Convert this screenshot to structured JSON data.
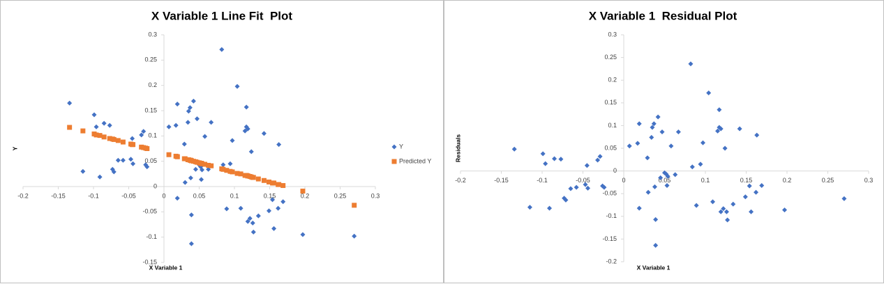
{
  "chart_data": [
    {
      "type": "scatter",
      "title": "X Variable 1 Line Fit  Plot",
      "x_label": "X Variable 1",
      "y_label": "Y",
      "legend": "right",
      "x": [
        -0.134,
        -0.115,
        -0.099,
        -0.096,
        -0.091,
        -0.085,
        -0.077,
        -0.073,
        -0.071,
        -0.065,
        -0.058,
        -0.047,
        -0.045,
        -0.044,
        -0.032,
        -0.029,
        -0.026,
        -0.024,
        0.007,
        0.017,
        0.019,
        0.019,
        0.029,
        0.03,
        0.034,
        0.035,
        0.037,
        0.038,
        0.039,
        0.039,
        0.042,
        0.045,
        0.047,
        0.05,
        0.052,
        0.053,
        0.054,
        0.058,
        0.063,
        0.067,
        0.082,
        0.084,
        0.089,
        0.094,
        0.097,
        0.104,
        0.109,
        0.115,
        0.117,
        0.117,
        0.119,
        0.119,
        0.122,
        0.124,
        0.126,
        0.127,
        0.134,
        0.142,
        0.149,
        0.154,
        0.156,
        0.162,
        0.163,
        0.169,
        0.197,
        0.27
      ],
      "series": [
        {
          "name": "Y",
          "color": "#4472c4",
          "marker": "diamond",
          "values": [
            0.165,
            0.03,
            0.142,
            0.118,
            0.019,
            0.125,
            0.121,
            0.034,
            0.029,
            0.052,
            0.052,
            0.054,
            0.095,
            0.045,
            0.102,
            0.109,
            0.043,
            0.039,
            0.118,
            0.121,
            0.163,
            -0.023,
            0.084,
            0.008,
            0.127,
            0.149,
            0.156,
            0.017,
            -0.056,
            -0.113,
            0.169,
            0.034,
            0.134,
            0.043,
            0.039,
            0.014,
            0.033,
            0.099,
            0.034,
            0.127,
            0.271,
            0.043,
            -0.044,
            0.045,
            0.091,
            0.198,
            -0.043,
            0.11,
            0.157,
            0.118,
            0.114,
            -0.069,
            -0.063,
            0.069,
            -0.072,
            -0.09,
            -0.058,
            0.105,
            -0.048,
            -0.026,
            -0.083,
            -0.043,
            0.083,
            -0.03,
            -0.095,
            -0.098
          ]
        },
        {
          "name": "Predicted Y",
          "color": "#ed7d31",
          "marker": "square",
          "values": [
            0.117,
            0.11,
            0.104,
            0.102,
            0.101,
            0.098,
            0.095,
            0.094,
            0.093,
            0.091,
            0.088,
            0.084,
            0.083,
            0.083,
            0.078,
            0.077,
            0.076,
            0.075,
            0.063,
            0.06,
            0.059,
            0.059,
            0.055,
            0.055,
            0.053,
            0.053,
            0.052,
            0.052,
            0.051,
            0.051,
            0.05,
            0.049,
            0.048,
            0.047,
            0.046,
            0.046,
            0.045,
            0.044,
            0.042,
            0.041,
            0.035,
            0.034,
            0.032,
            0.03,
            0.029,
            0.026,
            0.025,
            0.022,
            0.022,
            0.022,
            0.021,
            0.021,
            0.02,
            0.019,
            0.018,
            0.018,
            0.015,
            0.012,
            0.009,
            0.007,
            0.007,
            0.004,
            0.004,
            0.002,
            -0.009,
            -0.037
          ]
        }
      ],
      "xlim": [
        -0.2,
        0.3
      ],
      "xticks": [
        -0.2,
        -0.15,
        -0.1,
        -0.05,
        0,
        0.05,
        0.1,
        0.15,
        0.2,
        0.25,
        0.3
      ],
      "ylim": [
        -0.15,
        0.3
      ],
      "yticks": [
        -0.15,
        -0.1,
        -0.05,
        0,
        0.05,
        0.1,
        0.15,
        0.2,
        0.25,
        0.3
      ]
    },
    {
      "type": "scatter",
      "title": "X Variable 1  Residual Plot",
      "x_label": "X Variable 1",
      "y_label": "Residuals",
      "x": [
        -0.134,
        -0.115,
        -0.099,
        -0.096,
        -0.091,
        -0.085,
        -0.077,
        -0.073,
        -0.071,
        -0.065,
        -0.058,
        -0.047,
        -0.045,
        -0.044,
        -0.032,
        -0.029,
        -0.026,
        -0.024,
        0.007,
        0.017,
        0.019,
        0.019,
        0.029,
        0.03,
        0.034,
        0.035,
        0.037,
        0.038,
        0.039,
        0.039,
        0.042,
        0.045,
        0.047,
        0.05,
        0.052,
        0.053,
        0.054,
        0.058,
        0.063,
        0.067,
        0.082,
        0.084,
        0.089,
        0.094,
        0.097,
        0.104,
        0.109,
        0.115,
        0.117,
        0.117,
        0.119,
        0.119,
        0.122,
        0.124,
        0.126,
        0.127,
        0.134,
        0.142,
        0.149,
        0.154,
        0.156,
        0.162,
        0.163,
        0.169,
        0.197,
        0.27
      ],
      "series": [
        {
          "color": "#4472c4",
          "marker": "diamond",
          "values": [
            0.048,
            -0.08,
            0.038,
            0.016,
            -0.082,
            0.027,
            0.026,
            -0.06,
            -0.064,
            -0.039,
            -0.036,
            -0.03,
            0.012,
            -0.038,
            0.024,
            0.032,
            -0.033,
            -0.036,
            0.055,
            0.061,
            0.104,
            -0.082,
            0.029,
            -0.047,
            0.074,
            0.096,
            0.104,
            -0.035,
            -0.107,
            -0.164,
            0.119,
            -0.015,
            0.086,
            -0.004,
            -0.007,
            -0.032,
            -0.012,
            0.055,
            -0.008,
            0.086,
            0.236,
            0.009,
            -0.076,
            0.015,
            0.062,
            0.172,
            -0.068,
            0.088,
            0.135,
            0.096,
            0.093,
            -0.09,
            -0.083,
            0.05,
            -0.09,
            -0.108,
            -0.073,
            0.093,
            -0.057,
            -0.033,
            -0.09,
            -0.047,
            0.079,
            -0.032,
            -0.086,
            -0.061
          ]
        }
      ],
      "xlim": [
        -0.2,
        0.3
      ],
      "xticks": [
        -0.2,
        -0.15,
        -0.1,
        -0.05,
        0,
        0.05,
        0.1,
        0.15,
        0.2,
        0.25,
        0.3
      ],
      "ylim": [
        -0.2,
        0.3
      ],
      "yticks": [
        -0.2,
        -0.15,
        -0.1,
        -0.05,
        0,
        0.05,
        0.1,
        0.15,
        0.2,
        0.25,
        0.3
      ]
    }
  ]
}
